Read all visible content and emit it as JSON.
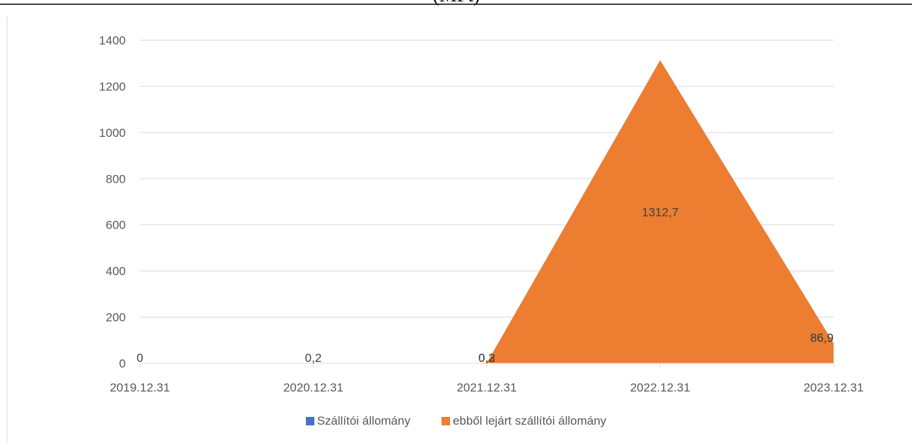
{
  "header_fragment": "(MFt)",
  "chart_data": {
    "type": "area",
    "x": [
      "2019.12.31",
      "2020.12.31",
      "2021.12.31",
      "2022.12.31",
      "2023.12.31"
    ],
    "ylim": [
      0,
      1400
    ],
    "yticks": [
      0,
      200,
      400,
      600,
      800,
      1000,
      1200,
      1400
    ],
    "series": [
      {
        "name": "Szállítói állomány",
        "color": "#4472C4",
        "values": [
          0,
          0.2,
          0.3,
          1312.7,
          86.9
        ],
        "labels": [
          "0",
          "0,2",
          "0,3",
          "",
          "86,9"
        ]
      },
      {
        "name": "ebből lejárt szállítói állomány",
        "color": "#ED7D31",
        "values": [
          null,
          null,
          0.2,
          1312.7,
          86.9
        ],
        "labels": [
          "",
          "",
          "0,2",
          "1312,7",
          "86,9"
        ]
      }
    ],
    "grid": true,
    "legend": "bottom"
  }
}
